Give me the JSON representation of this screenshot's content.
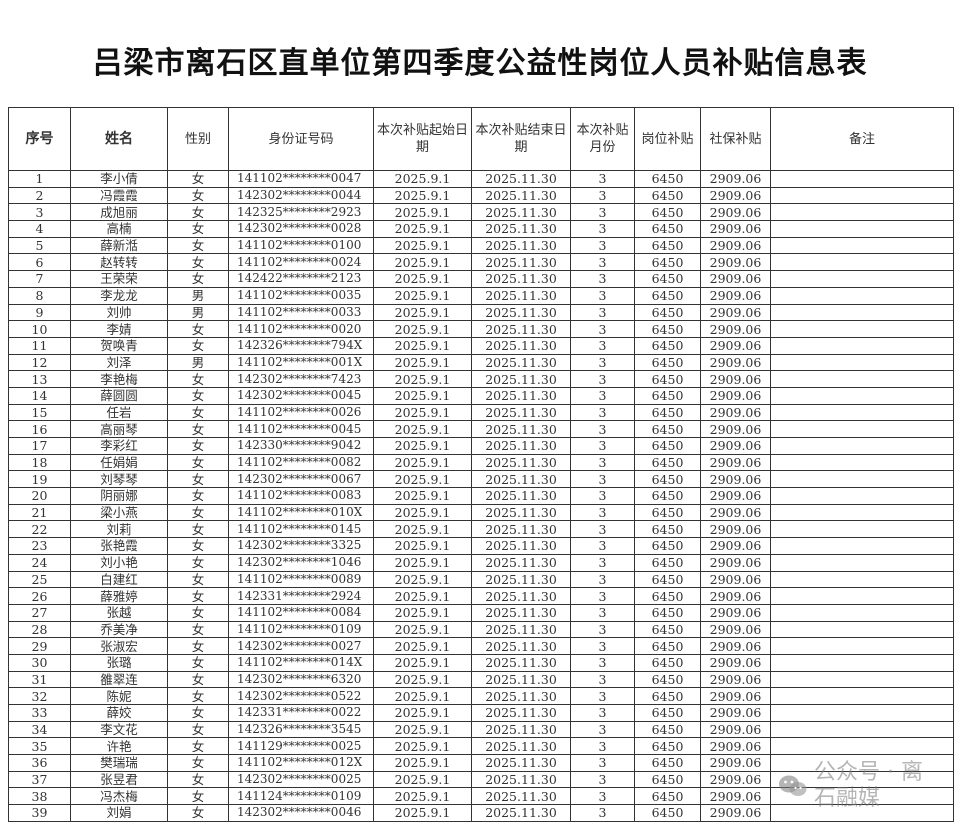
{
  "title": "吕梁市离石区直单位第四季度公益性岗位人员补贴信息表",
  "headers": [
    "序号",
    "姓名",
    "性别",
    "身份证号码",
    "本次补贴起始日期",
    "本次补贴结束日期",
    "本次补贴月份",
    "岗位补贴",
    "社保补贴",
    "备注"
  ],
  "rows": [
    [
      "1",
      "李小倩",
      "女",
      "141102********0047",
      "2025.9.1",
      "2025.11.30",
      "3",
      "6450",
      "2909.06",
      ""
    ],
    [
      "2",
      "冯霞霞",
      "女",
      "142302********0044",
      "2025.9.1",
      "2025.11.30",
      "3",
      "6450",
      "2909.06",
      ""
    ],
    [
      "3",
      "成旭丽",
      "女",
      "142325********2923",
      "2025.9.1",
      "2025.11.30",
      "3",
      "6450",
      "2909.06",
      ""
    ],
    [
      "4",
      "高楠",
      "女",
      "142302********0028",
      "2025.9.1",
      "2025.11.30",
      "3",
      "6450",
      "2909.06",
      ""
    ],
    [
      "5",
      "薛新湉",
      "女",
      "141102********0100",
      "2025.9.1",
      "2025.11.30",
      "3",
      "6450",
      "2909.06",
      ""
    ],
    [
      "6",
      "赵转转",
      "女",
      "141102********0024",
      "2025.9.1",
      "2025.11.30",
      "3",
      "6450",
      "2909.06",
      ""
    ],
    [
      "7",
      "王荣荣",
      "女",
      "142422********2123",
      "2025.9.1",
      "2025.11.30",
      "3",
      "6450",
      "2909.06",
      ""
    ],
    [
      "8",
      "李龙龙",
      "男",
      "141102********0035",
      "2025.9.1",
      "2025.11.30",
      "3",
      "6450",
      "2909.06",
      ""
    ],
    [
      "9",
      "刘帅",
      "男",
      "141102********0033",
      "2025.9.1",
      "2025.11.30",
      "3",
      "6450",
      "2909.06",
      ""
    ],
    [
      "10",
      "李婧",
      "女",
      "141102********0020",
      "2025.9.1",
      "2025.11.30",
      "3",
      "6450",
      "2909.06",
      ""
    ],
    [
      "11",
      "贺唤青",
      "女",
      "142326********794X",
      "2025.9.1",
      "2025.11.30",
      "3",
      "6450",
      "2909.06",
      ""
    ],
    [
      "12",
      "刘泽",
      "男",
      "141102********001X",
      "2025.9.1",
      "2025.11.30",
      "3",
      "6450",
      "2909.06",
      ""
    ],
    [
      "13",
      "李艳梅",
      "女",
      "142302********7423",
      "2025.9.1",
      "2025.11.30",
      "3",
      "6450",
      "2909.06",
      ""
    ],
    [
      "14",
      "薛圆圆",
      "女",
      "142302********0045",
      "2025.9.1",
      "2025.11.30",
      "3",
      "6450",
      "2909.06",
      ""
    ],
    [
      "15",
      "任岩",
      "女",
      "141102********0026",
      "2025.9.1",
      "2025.11.30",
      "3",
      "6450",
      "2909.06",
      ""
    ],
    [
      "16",
      "高丽琴",
      "女",
      "141102********0045",
      "2025.9.1",
      "2025.11.30",
      "3",
      "6450",
      "2909.06",
      ""
    ],
    [
      "17",
      "李彩红",
      "女",
      "142330********9042",
      "2025.9.1",
      "2025.11.30",
      "3",
      "6450",
      "2909.06",
      ""
    ],
    [
      "18",
      "任娟娟",
      "女",
      "141102********0082",
      "2025.9.1",
      "2025.11.30",
      "3",
      "6450",
      "2909.06",
      ""
    ],
    [
      "19",
      "刘琴琴",
      "女",
      "142302********0067",
      "2025.9.1",
      "2025.11.30",
      "3",
      "6450",
      "2909.06",
      ""
    ],
    [
      "20",
      "阴丽娜",
      "女",
      "141102********0083",
      "2025.9.1",
      "2025.11.30",
      "3",
      "6450",
      "2909.06",
      ""
    ],
    [
      "21",
      "梁小燕",
      "女",
      "141102********010X",
      "2025.9.1",
      "2025.11.30",
      "3",
      "6450",
      "2909.06",
      ""
    ],
    [
      "22",
      "刘莉",
      "女",
      "141102********0145",
      "2025.9.1",
      "2025.11.30",
      "3",
      "6450",
      "2909.06",
      ""
    ],
    [
      "23",
      "张艳霞",
      "女",
      "142302********3325",
      "2025.9.1",
      "2025.11.30",
      "3",
      "6450",
      "2909.06",
      ""
    ],
    [
      "24",
      "刘小艳",
      "女",
      "142302********1046",
      "2025.9.1",
      "2025.11.30",
      "3",
      "6450",
      "2909.06",
      ""
    ],
    [
      "25",
      "白建红",
      "女",
      "141102********0089",
      "2025.9.1",
      "2025.11.30",
      "3",
      "6450",
      "2909.06",
      ""
    ],
    [
      "26",
      "薛雅婷",
      "女",
      "142331********2924",
      "2025.9.1",
      "2025.11.30",
      "3",
      "6450",
      "2909.06",
      ""
    ],
    [
      "27",
      "张越",
      "女",
      "141102********0084",
      "2025.9.1",
      "2025.11.30",
      "3",
      "6450",
      "2909.06",
      ""
    ],
    [
      "28",
      "乔美净",
      "女",
      "141102********0109",
      "2025.9.1",
      "2025.11.30",
      "3",
      "6450",
      "2909.06",
      ""
    ],
    [
      "29",
      "张淑宏",
      "女",
      "142302********0027",
      "2025.9.1",
      "2025.11.30",
      "3",
      "6450",
      "2909.06",
      ""
    ],
    [
      "30",
      "张璐",
      "女",
      "141102********014X",
      "2025.9.1",
      "2025.11.30",
      "3",
      "6450",
      "2909.06",
      ""
    ],
    [
      "31",
      "雒翠连",
      "女",
      "142302********6320",
      "2025.9.1",
      "2025.11.30",
      "3",
      "6450",
      "2909.06",
      ""
    ],
    [
      "32",
      "陈妮",
      "女",
      "142302********0522",
      "2025.9.1",
      "2025.11.30",
      "3",
      "6450",
      "2909.06",
      ""
    ],
    [
      "33",
      "薛姣",
      "女",
      "142331********0022",
      "2025.9.1",
      "2025.11.30",
      "3",
      "6450",
      "2909.06",
      ""
    ],
    [
      "34",
      "李文花",
      "女",
      "142326********3545",
      "2025.9.1",
      "2025.11.30",
      "3",
      "6450",
      "2909.06",
      ""
    ],
    [
      "35",
      "许艳",
      "女",
      "141129********0025",
      "2025.9.1",
      "2025.11.30",
      "3",
      "6450",
      "2909.06",
      ""
    ],
    [
      "36",
      "樊瑞瑞",
      "女",
      "141102********012X",
      "2025.9.1",
      "2025.11.30",
      "3",
      "6450",
      "2909.06",
      ""
    ],
    [
      "37",
      "张昱君",
      "女",
      "142302********0025",
      "2025.9.1",
      "2025.11.30",
      "3",
      "6450",
      "2909.06",
      ""
    ],
    [
      "38",
      "冯杰梅",
      "女",
      "141124********0109",
      "2025.9.1",
      "2025.11.30",
      "3",
      "6450",
      "2909.06",
      ""
    ],
    [
      "39",
      "刘娟",
      "女",
      "142302********0046",
      "2025.9.1",
      "2025.11.30",
      "3",
      "6450",
      "2909.06",
      ""
    ]
  ],
  "watermark": {
    "text": "公众号 · 离石融媒",
    "icon": "wechat-icon"
  }
}
